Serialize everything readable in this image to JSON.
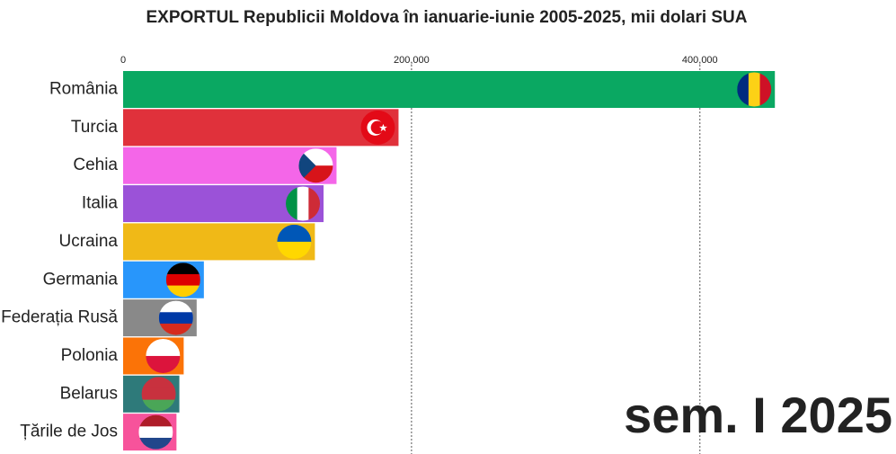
{
  "chart_data": {
    "type": "bar",
    "orientation": "horizontal",
    "title": "EXPORTUL Republicii Moldova în ianuarie-iunie 2005-2025, mii dolari SUA",
    "period_label": "sem. I 2025",
    "categories": [
      "România",
      "Turcia",
      "Cehia",
      "Italia",
      "Ucraina",
      "Germania",
      "Federația Rusă",
      "Polonia",
      "Belarus",
      "Țările de Jos"
    ],
    "values": [
      452000,
      191000,
      148000,
      139000,
      133000,
      56000,
      51000,
      42000,
      39000,
      37000
    ],
    "colors": [
      "#0aa862",
      "#e0313b",
      "#f466e8",
      "#9b52d8",
      "#f0b917",
      "#2896fb",
      "#898989",
      "#fb7307",
      "#2e7a7a",
      "#f7539b"
    ],
    "xlim": [
      0,
      536000
    ],
    "xticks": [
      0,
      {
        "value": 200000,
        "label": "200,000"
      },
      {
        "value": 400000,
        "label": "400,000"
      }
    ],
    "grid": true
  }
}
